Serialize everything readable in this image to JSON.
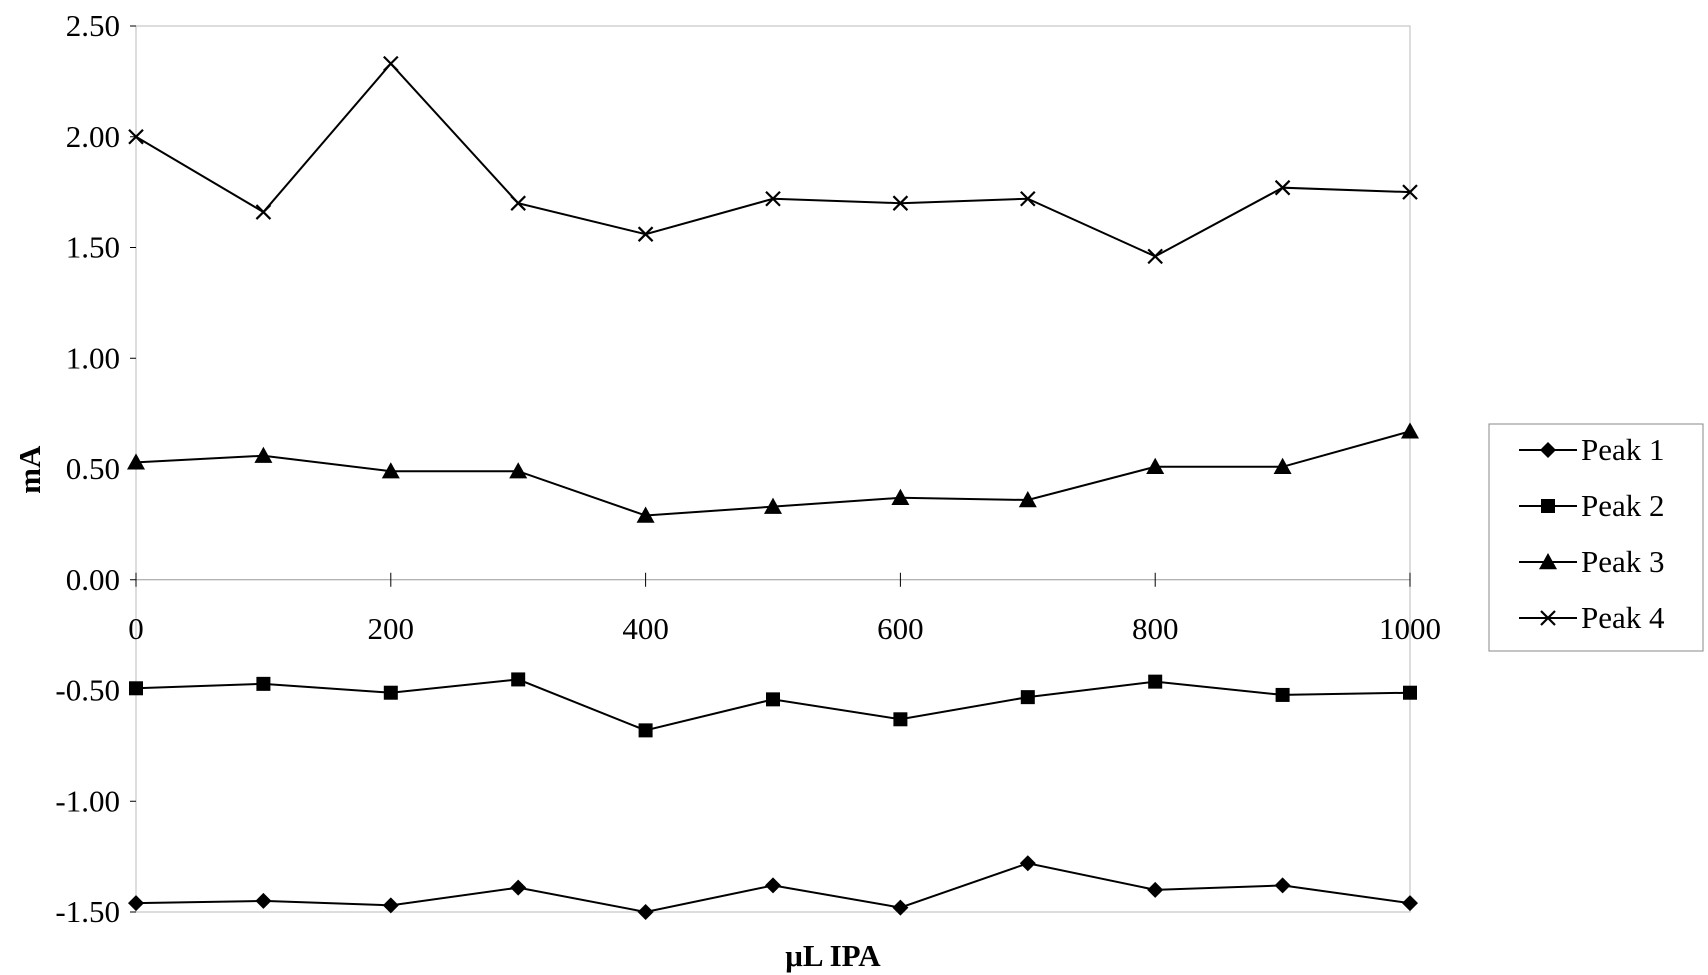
{
  "chart_data": {
    "type": "line",
    "title": "",
    "xlabel": "μL IPA",
    "ylabel": "mA",
    "x": [
      0,
      100,
      200,
      300,
      400,
      500,
      600,
      700,
      800,
      900,
      1000
    ],
    "xlim": [
      0,
      1000
    ],
    "ylim": [
      -1.5,
      2.5
    ],
    "x_tick_values": [
      0,
      200,
      400,
      600,
      800,
      1000
    ],
    "x_tick_labels": [
      "0",
      "200",
      "400",
      "600",
      "800",
      "1000"
    ],
    "y_tick_values": [
      2.5,
      2.0,
      1.5,
      1.0,
      0.5,
      0.0,
      -0.5,
      -1.0,
      -1.5
    ],
    "y_tick_labels": [
      "2.50",
      "2.00",
      "1.50",
      "1.00",
      "0.50",
      "0.00",
      "-0.50",
      "-1.00",
      "-1.50"
    ],
    "grid": false,
    "legend_position": "right",
    "series": [
      {
        "name": "Peak 1",
        "marker": "diamond",
        "values": [
          -1.46,
          -1.45,
          -1.47,
          -1.39,
          -1.5,
          -1.38,
          -1.48,
          -1.28,
          -1.4,
          -1.38,
          -1.46
        ]
      },
      {
        "name": "Peak 2",
        "marker": "square",
        "values": [
          -0.49,
          -0.47,
          -0.51,
          -0.45,
          -0.68,
          -0.54,
          -0.63,
          -0.53,
          -0.46,
          -0.52,
          -0.51
        ]
      },
      {
        "name": "Peak 3",
        "marker": "triangle",
        "values": [
          0.53,
          0.56,
          0.49,
          0.49,
          0.29,
          0.33,
          0.37,
          0.36,
          0.51,
          0.51,
          0.67
        ]
      },
      {
        "name": "Peak 4",
        "marker": "x",
        "values": [
          2.0,
          1.66,
          2.33,
          1.7,
          1.56,
          1.72,
          1.7,
          1.72,
          1.46,
          1.77,
          1.75
        ]
      }
    ],
    "line_color": "#000000"
  }
}
